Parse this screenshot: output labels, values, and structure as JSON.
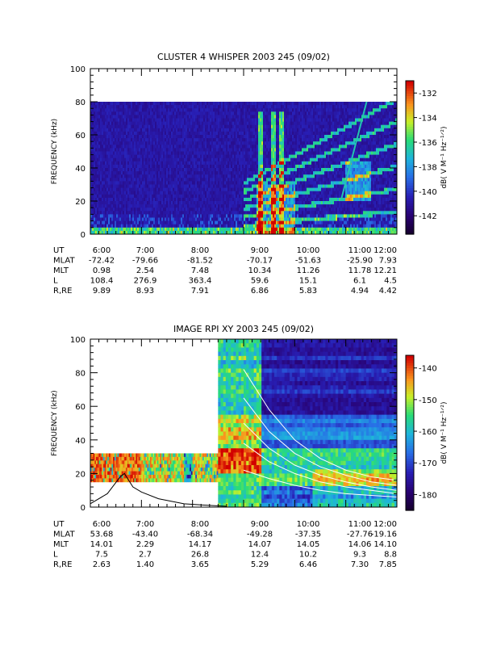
{
  "chart_data": [
    {
      "type": "heatmap",
      "title": "CLUSTER 4 WHISPER 2003 245 (09/02)",
      "ylabel": "FREQUENCY (kHz)",
      "ylim": [
        0,
        100
      ],
      "y_ticks": [
        "0",
        "20",
        "40",
        "60",
        "80",
        "100"
      ],
      "x_ticks": [
        "6:00",
        "7:00",
        "8:00",
        "9:00",
        "10:00",
        "11:00",
        "12:00"
      ],
      "colorbar": {
        "label": "dB( V M⁻¹ Hz⁻¹ᐟ²)",
        "ticks": [
          "-132",
          "-134",
          "-136",
          "-138",
          "-140",
          "-142"
        ],
        "range": [
          -143.5,
          -131
        ]
      },
      "data_extent_khz": 80,
      "features": [
        {
          "time": "9:20",
          "name": "burst"
        },
        {
          "time": "9:35",
          "name": "burst"
        },
        {
          "time": "9:45",
          "name": "burst"
        },
        {
          "time": "11:15",
          "name": "rising emission"
        }
      ],
      "ephemeris": {
        "rows": [
          {
            "label": "UT",
            "values": [
              "6:00",
              "7:00",
              "8:00",
              "9:00",
              "10:00",
              "11:00",
              "12:00"
            ]
          },
          {
            "label": "MLAT",
            "values": [
              "-72.42",
              "-79.66",
              "-81.52",
              "-70.17",
              "-51.63",
              "-25.90",
              "7.93"
            ]
          },
          {
            "label": "MLT",
            "values": [
              "0.98",
              "2.54",
              "7.48",
              "10.34",
              "11.26",
              "11.78",
              "12.21"
            ]
          },
          {
            "label": "L",
            "values": [
              "108.4",
              "276.9",
              "363.4",
              "59.6",
              "15.1",
              "6.1",
              "4.5"
            ]
          },
          {
            "label": "R,RE",
            "values": [
              "9.89",
              "8.93",
              "7.91",
              "6.86",
              "5.83",
              "4.94",
              "4.42"
            ]
          }
        ]
      }
    },
    {
      "type": "heatmap",
      "title": "IMAGE RPI XY 2003 245 (09/02)",
      "ylabel": "FREQUENCY (kHz)",
      "ylim": [
        0,
        100
      ],
      "y_ticks": [
        "0",
        "20",
        "40",
        "60",
        "80",
        "100"
      ],
      "x_ticks": [
        "6:00",
        "7:00",
        "8:00",
        "9:00",
        "10:00",
        "11:00",
        "12:00"
      ],
      "colorbar": {
        "label": "dB( V M⁻¹ Hz⁻¹ᐟ²)",
        "ticks": [
          "-140",
          "-150",
          "-160",
          "-170",
          "-180"
        ],
        "range": [
          -185,
          -136
        ]
      },
      "early_band_khz": [
        15,
        32
      ],
      "early_band_end": "8:30",
      "full_coverage_start": "8:30",
      "profile_curve": {
        "x": [
          "6:00",
          "6:20",
          "6:35",
          "6:40",
          "6:50",
          "7:00",
          "7:20",
          "7:50",
          "8:20",
          "8:40"
        ],
        "y": [
          2,
          8,
          18,
          20,
          12,
          9,
          5,
          2,
          1,
          0.5
        ]
      },
      "white_curves": [
        {
          "x": [
            "9:00",
            "9:30",
            "10:00",
            "10:30",
            "11:00",
            "11:30",
            "12:00"
          ],
          "y": [
            82,
            58,
            40,
            29,
            22,
            18,
            16
          ]
        },
        {
          "x": [
            "9:00",
            "9:30",
            "10:00",
            "10:30",
            "11:00",
            "11:30",
            "12:00"
          ],
          "y": [
            65,
            45,
            32,
            24,
            19,
            15,
            13
          ]
        },
        {
          "x": [
            "9:00",
            "9:30",
            "10:00",
            "10:30",
            "11:00",
            "11:30",
            "12:00"
          ],
          "y": [
            50,
            35,
            25,
            19,
            15,
            12,
            10
          ]
        },
        {
          "x": [
            "9:00",
            "9:30",
            "10:00",
            "10:30",
            "11:00",
            "11:30",
            "12:00"
          ],
          "y": [
            38,
            27,
            20,
            15,
            12,
            10,
            8
          ]
        },
        {
          "x": [
            "9:00",
            "9:30",
            "10:00",
            "10:30",
            "11:00",
            "11:30",
            "12:00"
          ],
          "y": [
            22,
            17,
            13,
            10,
            8,
            7,
            6
          ]
        }
      ],
      "ephemeris": {
        "rows": [
          {
            "label": "UT",
            "values": [
              "6:00",
              "7:00",
              "8:00",
              "9:00",
              "10:00",
              "11:00",
              "12:00"
            ]
          },
          {
            "label": "MLAT",
            "values": [
              "53.68",
              "-43.40",
              "-68.34",
              "-49.28",
              "-37.35",
              "-27.76",
              "-19.16"
            ]
          },
          {
            "label": "MLT",
            "values": [
              "14.01",
              "2.29",
              "14.17",
              "14.07",
              "14.05",
              "14.06",
              "14.10"
            ]
          },
          {
            "label": "L",
            "values": [
              "7.5",
              "2.7",
              "26.8",
              "12.4",
              "10.2",
              "9.3",
              "8.8"
            ]
          },
          {
            "label": "R,RE",
            "values": [
              "2.63",
              "1.40",
              "3.65",
              "5.29",
              "6.46",
              "7.30",
              "7.85"
            ]
          }
        ]
      }
    }
  ]
}
